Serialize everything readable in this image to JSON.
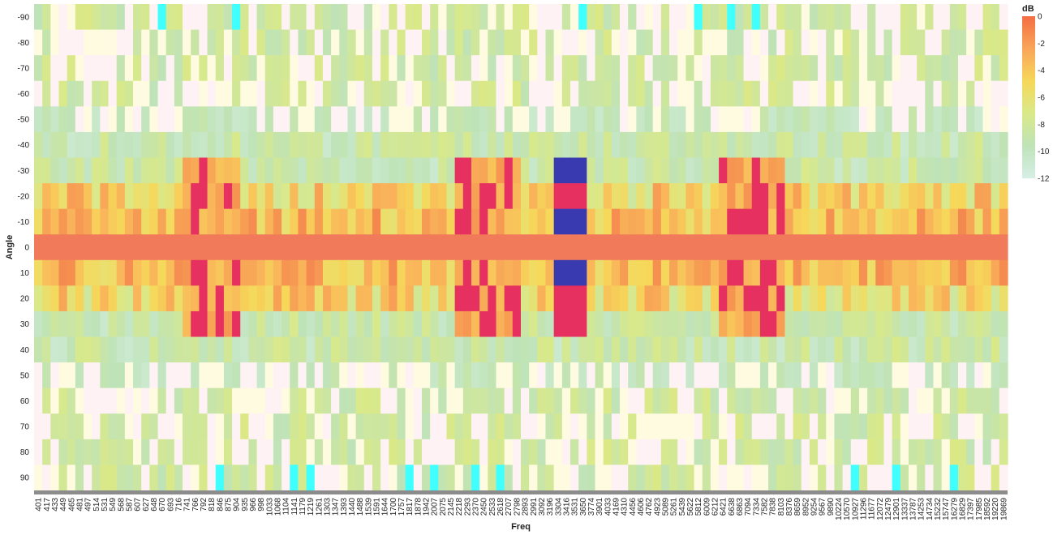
{
  "chart_data": {
    "type": "heatmap",
    "title": "",
    "xlabel": "Freq",
    "ylabel": "Angle",
    "legend": {
      "title": "dB",
      "ticks": [
        0,
        -2,
        -4,
        -6,
        -8,
        -10,
        -12
      ],
      "placement": "right"
    },
    "color_domain": [
      -12,
      0
    ],
    "colors": {
      "mid_low": "#fff2f4",
      "mid_high": "#f6d85a",
      "hot": "#f07a5a",
      "magenta": "#e6305f",
      "deep": "#3a3ab0",
      "spike": "#40ffff",
      "axis_bar": "#8c8c8c"
    },
    "y_angles": [
      -90,
      -80,
      -70,
      -60,
      -50,
      -40,
      -30,
      -20,
      -10,
      0,
      10,
      20,
      30,
      40,
      50,
      60,
      70,
      80,
      90
    ],
    "x_labels": [
      "401",
      "417",
      "433",
      "449",
      "465",
      "481",
      "497",
      "514",
      "531",
      "549",
      "568",
      "587",
      "607",
      "627",
      "648",
      "670",
      "693",
      "716",
      "741",
      "766",
      "792",
      "818",
      "846",
      "875",
      "904",
      "935",
      "966",
      "998",
      "1033",
      "1068",
      "1104",
      "1141",
      "1179",
      "1219",
      "1261",
      "1303",
      "1347",
      "1393",
      "1440",
      "1488",
      "1539",
      "1591",
      "1644",
      "1700",
      "1757",
      "1817",
      "1878",
      "1942",
      "2007",
      "2075",
      "2145",
      "2218",
      "2293",
      "2370",
      "2450",
      "2533",
      "2618",
      "2707",
      "2798",
      "2893",
      "2991",
      "3092",
      "3196",
      "3304",
      "3416",
      "3531",
      "3650",
      "3774",
      "3901",
      "4033",
      "4169",
      "4310",
      "4456",
      "4606",
      "4762",
      "4923",
      "5089",
      "5261",
      "5439",
      "5622",
      "5812",
      "6009",
      "6212",
      "6421",
      "6638",
      "6863",
      "7094",
      "7334",
      "7582",
      "7838",
      "8103",
      "8376",
      "8659",
      "8952",
      "9254",
      "9567",
      "9890",
      "10224",
      "10570",
      "10927",
      "11296",
      "11677",
      "12072",
      "12479",
      "12901",
      "13337",
      "13787",
      "14253",
      "14734",
      "15232",
      "15747",
      "16279",
      "16829",
      "17397",
      "17985",
      "18592",
      "19220",
      "19869"
    ]
  }
}
